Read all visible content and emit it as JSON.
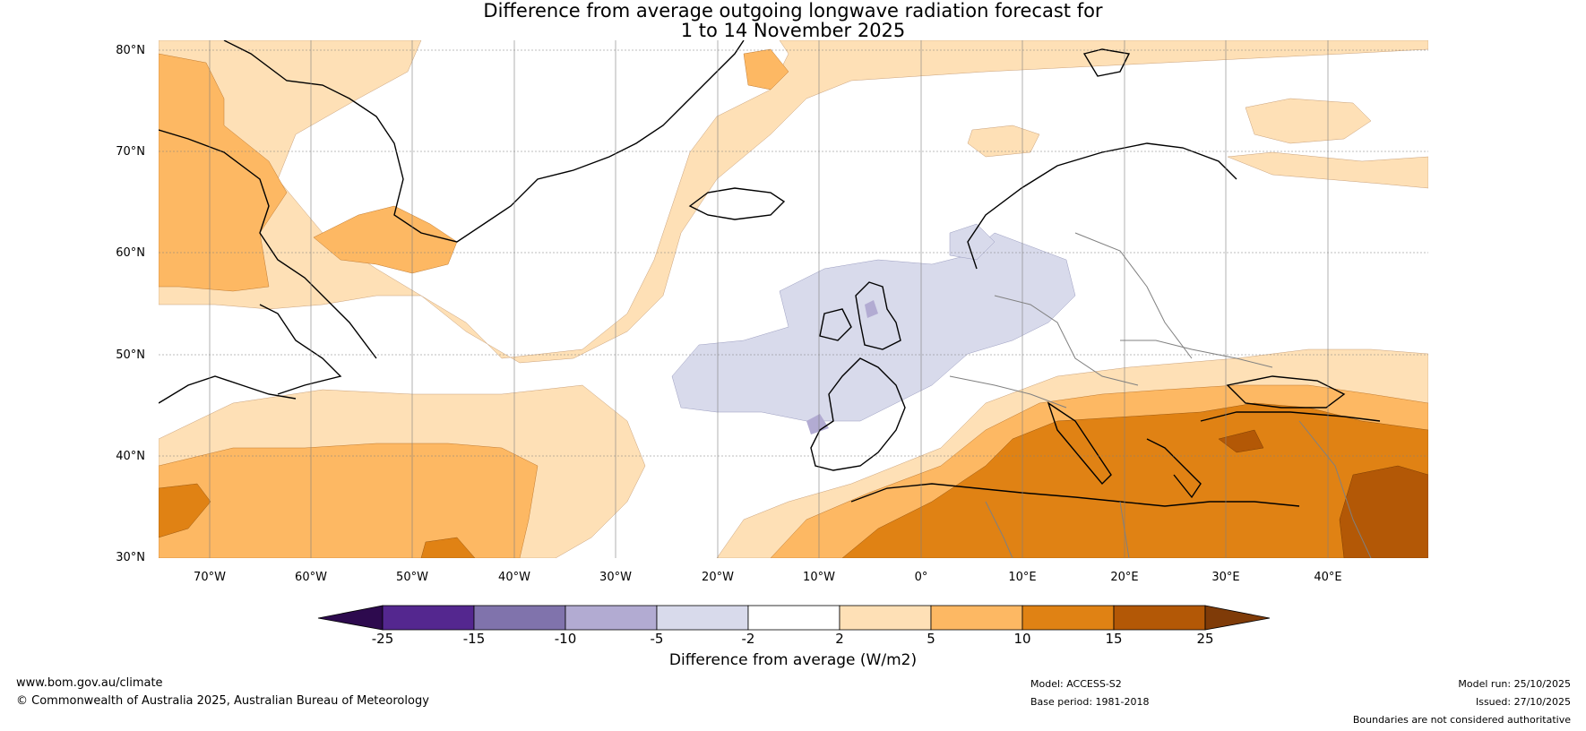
{
  "title": {
    "line1": "Difference from average outgoing longwave radiation forecast for",
    "line2": "1 to 14 November 2025"
  },
  "map": {
    "latitude_labels": [
      "80°N",
      "70°N",
      "60°N",
      "50°N",
      "40°N",
      "30°N"
    ],
    "longitude_labels": [
      "70°W",
      "60°W",
      "50°W",
      "40°W",
      "30°W",
      "20°W",
      "10°W",
      "0°",
      "10°E",
      "20°E",
      "30°E",
      "40°E"
    ],
    "extent": {
      "lon_min": -75,
      "lon_max": 50,
      "lat_min": 30,
      "lat_max": 81
    },
    "region_categories": [
      "Greenland and Labrador Sea above average",
      "North Atlantic near average",
      "Western Europe and eastern Atlantic below average",
      "Mediterranean and North Africa well above average",
      "Subtropical western Atlantic above average"
    ]
  },
  "colorbar": {
    "ticks": [
      "-25",
      "-15",
      "-10",
      "-5",
      "-2",
      "2",
      "5",
      "10",
      "15",
      "25"
    ],
    "colors": {
      "min_arrow": "#2d0a4e",
      "bin_n25_n15": "#54278f",
      "bin_n15_n10": "#8073ac",
      "bin_n10_n5": "#b2abd2",
      "bin_n5_n2": "#d8daeb",
      "bin_n2_2": "#ffffff",
      "bin_2_5": "#fee0b6",
      "bin_5_10": "#fdb863",
      "bin_10_15": "#e08214",
      "bin_15_25": "#b35806",
      "max_arrow": "#7f3b08"
    },
    "label": "Difference from average (W/m2)"
  },
  "footer": {
    "website": "www.bom.gov.au/climate",
    "copyright": "© Commonwealth of Australia 2025, Australian Bureau of Meteorology",
    "model": "Model: ACCESS-S2",
    "base_period": "Base period: 1981-2018",
    "model_run": "Model run: 25/10/2025",
    "issued": "Issued: 27/10/2025",
    "disclaimer": "Boundaries are not considered authoritative"
  }
}
